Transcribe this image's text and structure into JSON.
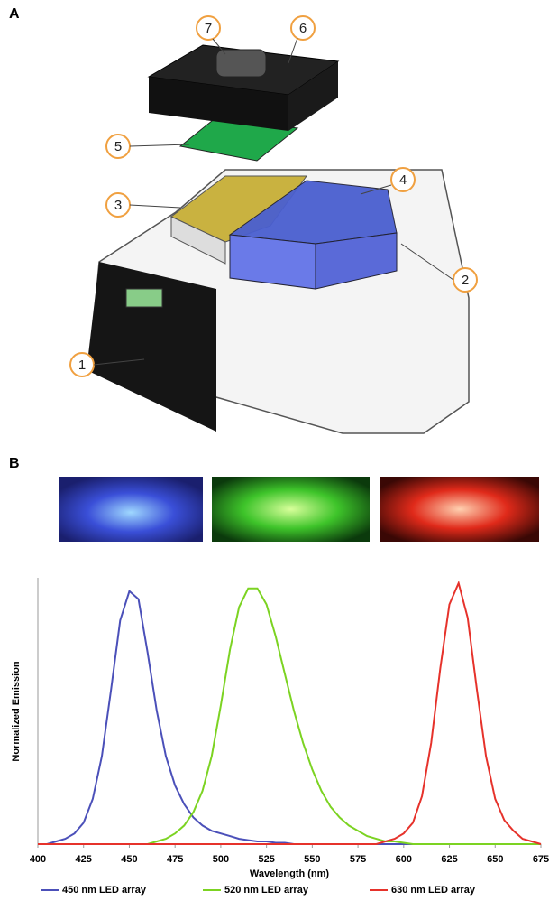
{
  "figure": {
    "panels": [
      "A",
      "B"
    ],
    "callouts": [
      "1",
      "2",
      "3",
      "4",
      "5",
      "6",
      "7"
    ]
  },
  "chart_data": {
    "type": "line",
    "xlabel": "Wavelength (nm)",
    "ylabel": "Normalized Emission",
    "x": [
      400,
      405,
      410,
      415,
      420,
      425,
      430,
      435,
      440,
      445,
      450,
      455,
      460,
      465,
      470,
      475,
      480,
      485,
      490,
      495,
      500,
      505,
      510,
      515,
      520,
      525,
      530,
      535,
      540,
      545,
      550,
      555,
      560,
      565,
      570,
      575,
      580,
      585,
      590,
      595,
      600,
      605,
      610,
      615,
      620,
      625,
      630,
      635,
      640,
      645,
      650,
      655,
      660,
      665,
      670,
      675
    ],
    "xlim": [
      400,
      675
    ],
    "xticks": [
      400,
      425,
      450,
      475,
      500,
      525,
      550,
      575,
      600,
      625,
      650,
      675
    ],
    "ylim": [
      0,
      1
    ],
    "legend": "bottom",
    "series": [
      {
        "name": "450 nm LED array",
        "color": "#4b50b9",
        "values": [
          0,
          0,
          0.01,
          0.02,
          0.04,
          0.08,
          0.17,
          0.33,
          0.58,
          0.84,
          0.95,
          0.92,
          0.72,
          0.5,
          0.33,
          0.22,
          0.15,
          0.1,
          0.07,
          0.05,
          0.04,
          0.03,
          0.02,
          0.015,
          0.01,
          0.01,
          0.005,
          0.005,
          0,
          0,
          0,
          0,
          0,
          0,
          0,
          0,
          0,
          0,
          0,
          0,
          0,
          0,
          0,
          0,
          0,
          0,
          0,
          0,
          0,
          0,
          0,
          0,
          0,
          0,
          0,
          0
        ]
      },
      {
        "name": "520 nm LED array",
        "color": "#7cd322",
        "values": [
          0,
          0,
          0,
          0,
          0,
          0,
          0,
          0,
          0,
          0,
          0,
          0,
          0,
          0.01,
          0.02,
          0.04,
          0.07,
          0.12,
          0.2,
          0.33,
          0.52,
          0.73,
          0.89,
          0.96,
          0.96,
          0.9,
          0.78,
          0.64,
          0.5,
          0.38,
          0.28,
          0.2,
          0.14,
          0.1,
          0.07,
          0.05,
          0.03,
          0.02,
          0.01,
          0.01,
          0.005,
          0,
          0,
          0,
          0,
          0,
          0,
          0,
          0,
          0,
          0,
          0,
          0,
          0,
          0,
          0
        ]
      },
      {
        "name": "630 nm LED array",
        "color": "#e6322b",
        "values": [
          0,
          0,
          0,
          0,
          0,
          0,
          0,
          0,
          0,
          0,
          0,
          0,
          0,
          0,
          0,
          0,
          0,
          0,
          0,
          0,
          0,
          0,
          0,
          0,
          0,
          0,
          0,
          0,
          0,
          0,
          0,
          0,
          0,
          0,
          0,
          0,
          0,
          0,
          0.01,
          0.02,
          0.04,
          0.08,
          0.18,
          0.38,
          0.66,
          0.9,
          0.98,
          0.85,
          0.58,
          0.33,
          0.17,
          0.09,
          0.05,
          0.02,
          0.01,
          0
        ]
      }
    ]
  }
}
